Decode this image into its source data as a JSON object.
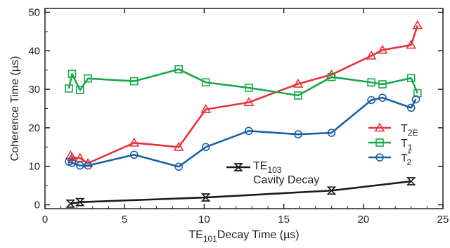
{
  "chart_data": {
    "type": "line",
    "xlabel_main": "TE",
    "xlabel_sub": "101",
    "xlabel_rest": "Decay Time (µs)",
    "ylabel": "Coherence Time (µs)",
    "xlim": [
      0,
      25
    ],
    "ylim": [
      -1,
      51
    ],
    "xticks": [
      0,
      5,
      10,
      15,
      20,
      25
    ],
    "yticks": [
      0,
      10,
      20,
      30,
      40,
      50
    ],
    "grid": false,
    "series": [
      {
        "key": "t2e",
        "legend_main": "T",
        "legend_sub": "2E",
        "legend_sup": "",
        "color": "#e8323c",
        "marker": "triangle",
        "x": [
          1.6,
          1.7,
          2.2,
          2.7,
          5.6,
          8.4,
          10.1,
          12.8,
          15.9,
          18.0,
          20.5,
          21.2,
          23.0,
          23.4
        ],
        "y": [
          12.8,
          12.3,
          12.1,
          10.8,
          16.1,
          15.0,
          24.8,
          26.6,
          31.4,
          33.8,
          38.7,
          40.2,
          41.5,
          46.6
        ]
      },
      {
        "key": "t1",
        "legend_main": "T",
        "legend_sub": "1",
        "legend_sup": "",
        "color": "#1aa84a",
        "marker": "square",
        "x": [
          1.5,
          1.7,
          2.2,
          2.7,
          5.6,
          8.4,
          10.1,
          12.8,
          15.9,
          18.0,
          20.5,
          21.2,
          23.0,
          23.4
        ],
        "y": [
          30.2,
          34.0,
          29.8,
          32.8,
          32.1,
          35.2,
          31.8,
          30.4,
          28.4,
          33.2,
          31.8,
          31.3,
          32.9,
          29.0
        ]
      },
      {
        "key": "t2star",
        "legend_main": "T",
        "legend_sub": "2",
        "legend_sup": "*",
        "color": "#1c5fa6",
        "marker": "circle",
        "x": [
          1.5,
          1.7,
          2.2,
          2.7,
          5.6,
          8.4,
          10.1,
          12.8,
          15.9,
          18.0,
          20.5,
          21.2,
          23.0,
          23.3
        ],
        "y": [
          11.2,
          10.9,
          10.2,
          10.2,
          13.0,
          9.9,
          15.0,
          19.2,
          18.3,
          18.7,
          27.2,
          27.8,
          25.2,
          27.4
        ]
      },
      {
        "key": "te103",
        "legend_main": "TE",
        "legend_sub": "103",
        "legend_line2": "Cavity Decay",
        "color": "#1a1a1a",
        "marker": "hourglass",
        "x": [
          1.6,
          2.2,
          10.1,
          18.0,
          23.0
        ],
        "y": [
          0.3,
          0.7,
          1.9,
          3.7,
          6.1
        ]
      }
    ]
  }
}
